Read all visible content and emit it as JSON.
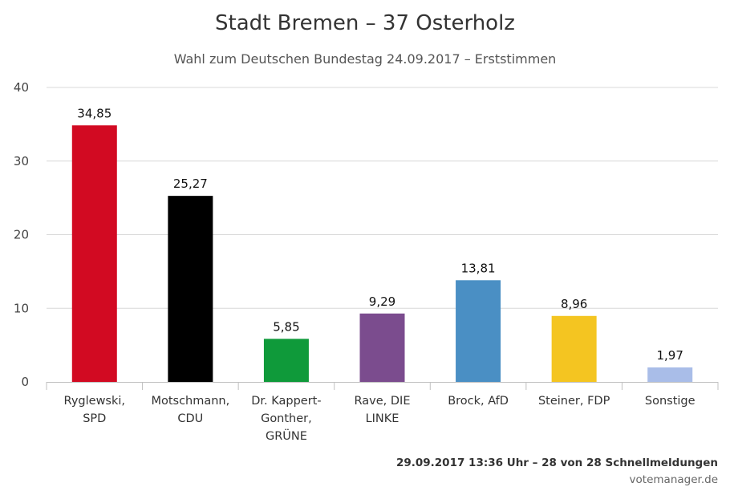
{
  "chart_data": {
    "type": "bar",
    "title": "Stadt Bremen – 37 Osterholz",
    "subtitle": "Wahl zum Deutschen Bundestag 24.09.2017 – Erststimmen",
    "categories": [
      [
        "Ryglewski,",
        "SPD"
      ],
      [
        "Motschmann,",
        "CDU"
      ],
      [
        "Dr. Kappert-",
        "Gonther,",
        "GRÜNE"
      ],
      [
        "Rave, DIE",
        "LINKE"
      ],
      [
        "Brock, AfD"
      ],
      [
        "Steiner, FDP"
      ],
      [
        "Sonstige"
      ]
    ],
    "values": [
      34.85,
      25.27,
      5.85,
      9.29,
      13.81,
      8.96,
      1.97
    ],
    "value_labels": [
      "34,85",
      "25,27",
      "5,85",
      "9,29",
      "13,81",
      "8,96",
      "1,97"
    ],
    "colors": [
      "#d20a22",
      "#000000",
      "#0f9a3a",
      "#7b4c8e",
      "#4a8fc4",
      "#f4c521",
      "#a9bde8"
    ],
    "ylim": [
      0,
      40
    ],
    "yticks": [
      0,
      10,
      20,
      30,
      40
    ],
    "grid": true,
    "xlabel": "",
    "ylabel": ""
  },
  "footer": {
    "status": "29.09.2017 13:36 Uhr – 28 von 28 Schnellmeldungen",
    "source": "votemanager.de"
  }
}
